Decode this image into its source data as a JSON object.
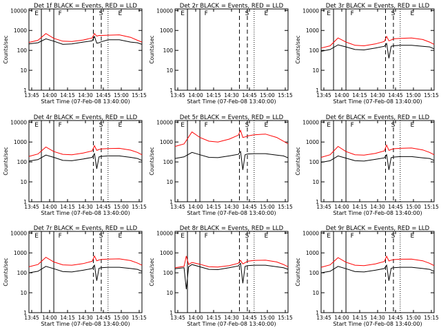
{
  "common": {
    "ylabel": "Counts/sec",
    "xlabel": "Start Time (07-Feb-08 13:40:00)",
    "xticks": [
      "13:45",
      "14:00",
      "14:15",
      "14:30",
      "14:45",
      "15:00",
      "15:15"
    ],
    "yticks": [
      "1",
      "10",
      "100",
      "1000",
      "10000"
    ],
    "xlim_minutes_after_start": [
      0,
      100
    ],
    "ylim": [
      1,
      12000
    ],
    "log_y": true,
    "colors": {
      "events": "#000000",
      "lld": "#ff0000"
    }
  },
  "chart_data": [
    {
      "type": "line",
      "title": "Det 1f BLACK = Events, RED = LLD",
      "letters": [
        "E",
        "F",
        "S",
        "E"
      ],
      "x_minutes_after_start": [
        0,
        8,
        15,
        22,
        30,
        38,
        48,
        56,
        58,
        60,
        62,
        64,
        70,
        80,
        90,
        96,
        100
      ],
      "series": [
        {
          "name": "Events",
          "values": [
            210,
            240,
            380,
            290,
            200,
            210,
            260,
            300,
            500,
            230,
            240,
            270,
            340,
            340,
            260,
            240,
            200
          ]
        },
        {
          "name": "LLD",
          "values": [
            250,
            320,
            700,
            400,
            290,
            280,
            330,
            420,
            700,
            520,
            560,
            560,
            580,
            600,
            450,
            320,
            260
          ]
        }
      ],
      "vlines": [
        {
          "x_minutes_after_start": 11,
          "style": "solid"
        },
        {
          "x_minutes_after_start": 22,
          "style": "solid"
        },
        {
          "x_minutes_after_start": 57,
          "style": "dashed"
        },
        {
          "x_minutes_after_start": 64,
          "style": "dashed"
        },
        {
          "x_minutes_after_start": 70,
          "style": "dotted"
        }
      ]
    },
    {
      "type": "line",
      "title": "Det 2r BLACK = Events, RED = LLD",
      "letters": [
        "E",
        "F",
        "S",
        "E"
      ],
      "x_minutes_after_start": [],
      "series": [],
      "vlines": [
        {
          "x_minutes_after_start": 11,
          "style": "solid"
        },
        {
          "x_minutes_after_start": 22,
          "style": "solid"
        },
        {
          "x_minutes_after_start": 57,
          "style": "dashed"
        },
        {
          "x_minutes_after_start": 64,
          "style": "dashed"
        },
        {
          "x_minutes_after_start": 70,
          "style": "dotted"
        }
      ]
    },
    {
      "type": "line",
      "title": "Det 3r BLACK = Events, RED = LLD",
      "letters": [
        "E",
        "F",
        "S",
        "E"
      ],
      "x_minutes_after_start": [
        0,
        8,
        15,
        22,
        30,
        38,
        48,
        56,
        58,
        60,
        62,
        64,
        70,
        80,
        90,
        96,
        100
      ],
      "series": [
        {
          "name": "Events",
          "values": [
            90,
            110,
            190,
            150,
            110,
            105,
            130,
            160,
            220,
            40,
            160,
            170,
            180,
            180,
            160,
            150,
            120
          ]
        },
        {
          "name": "LLD",
          "values": [
            130,
            170,
            420,
            260,
            180,
            170,
            210,
            280,
            500,
            300,
            330,
            380,
            400,
            420,
            350,
            260,
            200
          ]
        }
      ],
      "vlines": [
        {
          "x_minutes_after_start": 11,
          "style": "solid"
        },
        {
          "x_minutes_after_start": 22,
          "style": "solid"
        },
        {
          "x_minutes_after_start": 57,
          "style": "dashed"
        },
        {
          "x_minutes_after_start": 64,
          "style": "dashed"
        },
        {
          "x_minutes_after_start": 70,
          "style": "dotted"
        }
      ]
    },
    {
      "type": "line",
      "title": "Det 4r BLACK = Events, RED = LLD",
      "letters": [
        "E",
        "F",
        "S",
        "E"
      ],
      "x_minutes_after_start": [
        0,
        8,
        15,
        22,
        30,
        38,
        48,
        56,
        58,
        60,
        62,
        64,
        70,
        80,
        90,
        96,
        100
      ],
      "series": [
        {
          "name": "Events",
          "values": [
            110,
            130,
            220,
            170,
            120,
            115,
            140,
            170,
            260,
            45,
            180,
            190,
            200,
            200,
            170,
            150,
            120
          ]
        },
        {
          "name": "LLD",
          "values": [
            190,
            250,
            560,
            330,
            240,
            230,
            280,
            360,
            650,
            380,
            420,
            450,
            470,
            480,
            390,
            300,
            230
          ]
        }
      ],
      "vlines": [
        {
          "x_minutes_after_start": 11,
          "style": "solid"
        },
        {
          "x_minutes_after_start": 22,
          "style": "solid"
        },
        {
          "x_minutes_after_start": 57,
          "style": "dashed"
        },
        {
          "x_minutes_after_start": 64,
          "style": "dashed"
        },
        {
          "x_minutes_after_start": 70,
          "style": "dotted"
        }
      ]
    },
    {
      "type": "line",
      "title": "Det 5r BLACK = Events, RED = LLD",
      "letters": [
        "E",
        "F",
        "S",
        "E"
      ],
      "x_minutes_after_start": [
        0,
        8,
        15,
        22,
        30,
        38,
        48,
        56,
        58,
        60,
        62,
        64,
        70,
        80,
        90,
        96,
        100
      ],
      "series": [
        {
          "name": "Events",
          "values": [
            150,
            180,
            300,
            230,
            170,
            165,
            200,
            240,
            330,
            40,
            230,
            250,
            260,
            260,
            220,
            200,
            160
          ]
        },
        {
          "name": "LLD",
          "values": [
            600,
            800,
            3200,
            1700,
            1100,
            1000,
            1400,
            2200,
            3800,
            1700,
            1800,
            2000,
            2300,
            2500,
            1700,
            1100,
            800
          ]
        }
      ],
      "vlines": [
        {
          "x_minutes_after_start": 11,
          "style": "solid"
        },
        {
          "x_minutes_after_start": 22,
          "style": "solid"
        },
        {
          "x_minutes_after_start": 57,
          "style": "dashed"
        },
        {
          "x_minutes_after_start": 64,
          "style": "dashed"
        },
        {
          "x_minutes_after_start": 70,
          "style": "dotted"
        }
      ]
    },
    {
      "type": "line",
      "title": "Det 6r BLACK = Events, RED = LLD",
      "letters": [
        "E",
        "F",
        "S",
        "E"
      ],
      "x_minutes_after_start": [
        0,
        8,
        15,
        22,
        30,
        38,
        48,
        56,
        58,
        60,
        62,
        64,
        70,
        80,
        90,
        96,
        100
      ],
      "series": [
        {
          "name": "Events",
          "values": [
            95,
            115,
            200,
            155,
            115,
            110,
            135,
            160,
            230,
            40,
            165,
            175,
            185,
            185,
            160,
            150,
            120
          ]
        },
        {
          "name": "LLD",
          "values": [
            170,
            230,
            600,
            330,
            230,
            220,
            270,
            360,
            700,
            380,
            420,
            460,
            480,
            500,
            400,
            300,
            230
          ]
        }
      ],
      "vlines": [
        {
          "x_minutes_after_start": 11,
          "style": "solid"
        },
        {
          "x_minutes_after_start": 22,
          "style": "solid"
        },
        {
          "x_minutes_after_start": 57,
          "style": "dashed"
        },
        {
          "x_minutes_after_start": 64,
          "style": "dashed"
        },
        {
          "x_minutes_after_start": 70,
          "style": "dotted"
        }
      ]
    },
    {
      "type": "line",
      "title": "Det 7r BLACK = Events, RED = LLD",
      "letters": [
        "E",
        "F",
        "S",
        "E"
      ],
      "x_minutes_after_start": [
        0,
        8,
        15,
        22,
        30,
        38,
        48,
        56,
        58,
        60,
        62,
        64,
        70,
        80,
        90,
        96,
        100
      ],
      "series": [
        {
          "name": "Events",
          "values": [
            100,
            120,
            210,
            160,
            115,
            110,
            135,
            165,
            240,
            40,
            170,
            180,
            190,
            190,
            165,
            150,
            120
          ]
        },
        {
          "name": "LLD",
          "values": [
            200,
            260,
            600,
            350,
            250,
            240,
            290,
            380,
            700,
            400,
            440,
            470,
            490,
            500,
            410,
            310,
            240
          ]
        }
      ],
      "vlines": [
        {
          "x_minutes_after_start": 11,
          "style": "solid"
        },
        {
          "x_minutes_after_start": 22,
          "style": "solid"
        },
        {
          "x_minutes_after_start": 57,
          "style": "dashed"
        },
        {
          "x_minutes_after_start": 64,
          "style": "dashed"
        },
        {
          "x_minutes_after_start": 70,
          "style": "dotted"
        }
      ]
    },
    {
      "type": "line",
      "title": "Det 8r BLACK = Events, RED = LLD",
      "letters": [
        "E",
        "F",
        "S",
        "E"
      ],
      "x_minutes_after_start": [
        0,
        8,
        10,
        12,
        15,
        22,
        30,
        38,
        48,
        56,
        58,
        60,
        62,
        64,
        70,
        80,
        90,
        96,
        100
      ],
      "series": [
        {
          "name": "Events",
          "values": [
            160,
            180,
            15,
            200,
            260,
            200,
            150,
            145,
            180,
            220,
            300,
            30,
            210,
            230,
            240,
            240,
            200,
            180,
            150
          ]
        },
        {
          "name": "LLD",
          "values": [
            180,
            210,
            700,
            260,
            330,
            270,
            200,
            195,
            230,
            300,
            420,
            280,
            320,
            380,
            420,
            430,
            350,
            260,
            200
          ]
        }
      ],
      "vlines": [
        {
          "x_minutes_after_start": 11,
          "style": "solid"
        },
        {
          "x_minutes_after_start": 22,
          "style": "solid"
        },
        {
          "x_minutes_after_start": 57,
          "style": "dashed"
        },
        {
          "x_minutes_after_start": 64,
          "style": "dashed"
        },
        {
          "x_minutes_after_start": 70,
          "style": "dotted"
        }
      ]
    },
    {
      "type": "line",
      "title": "Det 9r BLACK = Events, RED = LLD",
      "letters": [
        "E",
        "F",
        "S",
        "E"
      ],
      "x_minutes_after_start": [
        0,
        8,
        15,
        22,
        30,
        38,
        48,
        56,
        58,
        60,
        62,
        64,
        70,
        80,
        90,
        96,
        100
      ],
      "series": [
        {
          "name": "Events",
          "values": [
            100,
            120,
            210,
            160,
            115,
            110,
            135,
            165,
            240,
            40,
            170,
            180,
            190,
            190,
            165,
            150,
            120
          ]
        },
        {
          "name": "LLD",
          "values": [
            190,
            250,
            580,
            340,
            240,
            230,
            280,
            370,
            680,
            390,
            430,
            460,
            480,
            490,
            400,
            300,
            230
          ]
        }
      ],
      "vlines": [
        {
          "x_minutes_after_start": 11,
          "style": "solid"
        },
        {
          "x_minutes_after_start": 22,
          "style": "solid"
        },
        {
          "x_minutes_after_start": 57,
          "style": "dashed"
        },
        {
          "x_minutes_after_start": 64,
          "style": "dashed"
        },
        {
          "x_minutes_after_start": 70,
          "style": "dotted"
        }
      ]
    }
  ]
}
